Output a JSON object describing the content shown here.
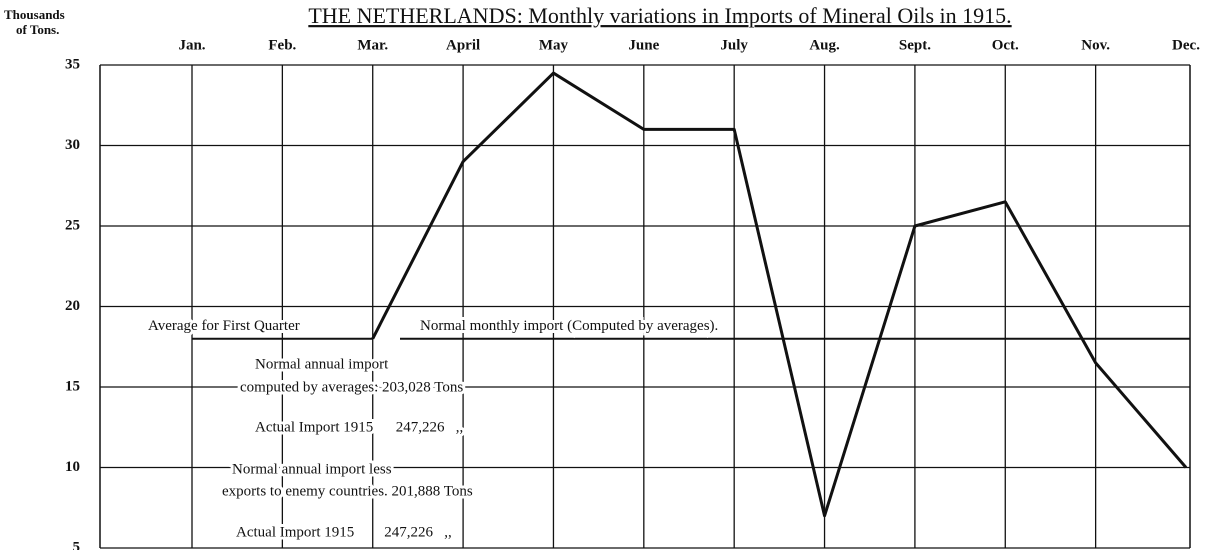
{
  "chart_data": {
    "type": "line",
    "title": "THE NETHERLANDS: Monthly variations in Imports of Mineral Oils in 1915.",
    "y_label": [
      "Thousands",
      "of Tons."
    ],
    "categories": [
      "Jan.",
      "Feb.",
      "Mar.",
      "April",
      "May",
      "June",
      "July",
      "Aug.",
      "Sept.",
      "Oct.",
      "Nov.",
      "Dec."
    ],
    "series": [
      {
        "name": "Imports",
        "color": "#111111",
        "values": [
          null,
          null,
          18,
          29,
          34.5,
          31,
          31,
          7,
          25,
          26.5,
          16.5,
          10
        ]
      }
    ],
    "ylim": [
      5,
      35
    ],
    "yticks": [
      35,
      30,
      25,
      20,
      15,
      10,
      5
    ],
    "grid": true,
    "reference_lines": [
      {
        "label": "Average for First Quarter",
        "value": 18
      },
      {
        "label": "Normal monthly import (Computed by averages).",
        "value": 18
      }
    ],
    "notes": [
      "Normal annual import",
      "computed by averages: 203,028 Tons",
      "Actual Import 1915      247,226   ,,",
      "Normal annual import less",
      "exports to enemy countries. 201,888 Tons",
      "Actual Import 1915        247,226   ,,"
    ]
  }
}
